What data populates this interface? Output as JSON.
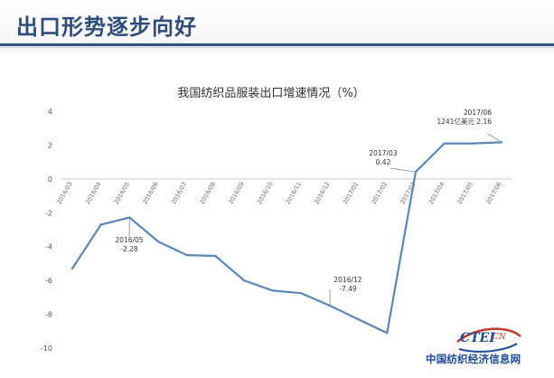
{
  "header": {
    "title": "出口形势逐步向好"
  },
  "logo": {
    "brand": "CTEI",
    "suffix": "CN",
    "name": "中国纺织经济信息网"
  },
  "colors": {
    "series": "#5b87b8",
    "header": "#2e4d7b",
    "grid": "#dedede"
  },
  "chart_data": {
    "type": "line",
    "title": "我国纺织品服装出口增速情况（%）",
    "xlabel": "",
    "ylabel": "",
    "ylim": [
      -10,
      4
    ],
    "yticks": [
      4,
      2,
      0,
      -2,
      -4,
      -6,
      -8,
      -10
    ],
    "grid": false,
    "categories": [
      "2016/03",
      "2016/04",
      "2016/05",
      "2016/06",
      "2016/07",
      "2016/08",
      "2016/09",
      "2016/10",
      "2016/11",
      "2016/12",
      "2017/01",
      "2017/02",
      "2017/03",
      "2017/04",
      "2017/05",
      "2017/06"
    ],
    "series": [
      {
        "values": [
          -5.3,
          -2.7,
          -2.28,
          -3.7,
          -4.5,
          -4.55,
          -6.0,
          -6.6,
          -6.75,
          -7.49,
          -8.3,
          -9.1,
          0.42,
          2.1,
          2.1,
          2.16
        ]
      }
    ],
    "annotations": [
      {
        "index": 2,
        "lines": [
          "2016/05",
          "-2.28"
        ]
      },
      {
        "index": 9,
        "lines": [
          "2016/12",
          "-7.49"
        ]
      },
      {
        "index": 12,
        "lines": [
          "2017/03",
          "0.42"
        ]
      },
      {
        "index": 15,
        "lines": [
          "2017/06",
          "1241亿美元  2.16"
        ]
      }
    ]
  }
}
